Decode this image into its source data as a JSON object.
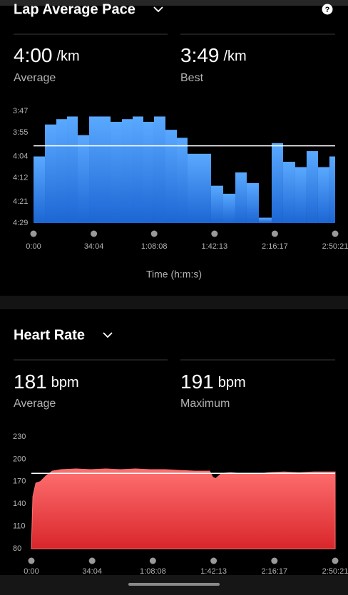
{
  "pace": {
    "title": "Lap Average Pace",
    "help_icon": "?",
    "stats": [
      {
        "value": {
          "value": 240,
          "label": "4:00"
        },
        "unit": "/km",
        "label": "Average"
      },
      {
        "value": {
          "value": 229,
          "label": "3:49"
        },
        "unit": "/km",
        "label": "Best"
      }
    ],
    "chart": {
      "type": "bar",
      "bins": [
        0,
        387,
        773,
        1136,
        1498,
        1885,
        2610,
        2996,
        3359,
        3721,
        4083,
        4470,
        4857,
        5219,
        6016,
        6427,
        6837,
        7224,
        7635,
        8070,
        8456,
        8867,
        9253,
        9640,
        10026,
        10221
      ],
      "values": [
        244,
        232,
        230,
        229,
        236,
        229,
        231,
        230,
        229,
        231,
        229,
        234,
        237,
        243,
        255,
        258,
        250,
        254,
        267,
        239,
        246,
        248,
        242,
        248,
        244
      ],
      "gradient": [
        "#5aa9ff",
        "#1c66d4"
      ],
      "ylim": [
        227,
        269
      ],
      "y_reversed": true,
      "yticks": [
        {
          "value": 227,
          "label": "3:47"
        },
        {
          "value": 235,
          "label": "3:55"
        },
        {
          "value": 244,
          "label": "4:04"
        },
        {
          "value": 252,
          "label": "4:12"
        },
        {
          "value": 261,
          "label": "4:21"
        },
        {
          "value": 269,
          "label": "4:29"
        }
      ],
      "xlim": [
        0,
        10221
      ],
      "xticks": [
        {
          "value": 0,
          "label": "0:00"
        },
        {
          "value": 2044,
          "label": "34:04"
        },
        {
          "value": 4088,
          "label": "1:08:08"
        },
        {
          "value": 6133,
          "label": "1:42:13"
        },
        {
          "value": 8177,
          "label": "2:16:17"
        },
        {
          "value": 10221,
          "label": "2:50:21"
        }
      ],
      "x_label": "Time (h:m:s)"
    }
  },
  "heart": {
    "title": "Heart Rate",
    "stats": [
      {
        "value": {
          "value": 181,
          "label": "181"
        },
        "unit": "bpm",
        "label": "Average"
      },
      {
        "value": {
          "value": 191,
          "label": "191"
        },
        "unit": "bpm",
        "label": "Maximum"
      }
    ],
    "chart": {
      "type": "area",
      "x": [
        0,
        50,
        150,
        300,
        500,
        700,
        1000,
        1500,
        2000,
        2500,
        3000,
        3500,
        4000,
        4500,
        5000,
        5500,
        6000,
        6100,
        6200,
        6400,
        6700,
        7000,
        7500,
        8000,
        8500,
        9000,
        9500,
        10000,
        10221
      ],
      "values": [
        80,
        150,
        168,
        170,
        178,
        184,
        186,
        187,
        186,
        187,
        186,
        187,
        186,
        186,
        185,
        184,
        184,
        176,
        174,
        181,
        182,
        181,
        180,
        182,
        183,
        182,
        183,
        183,
        183
      ],
      "gradient": [
        "#ff7070",
        "#d9262b"
      ],
      "ylim": [
        80,
        230
      ],
      "y_reversed": false,
      "yticks": [
        80,
        110,
        140,
        170,
        200,
        230
      ],
      "xlim": [
        0,
        10221
      ],
      "xticks": [
        {
          "value": 0,
          "label": "0:00"
        },
        {
          "value": 2044,
          "label": "34:04"
        },
        {
          "value": 4088,
          "label": "1:08:08"
        },
        {
          "value": 6133,
          "label": "1:42:13"
        },
        {
          "value": 8177,
          "label": "2:16:17"
        },
        {
          "value": 10221,
          "label": "2:50:21"
        }
      ]
    }
  }
}
